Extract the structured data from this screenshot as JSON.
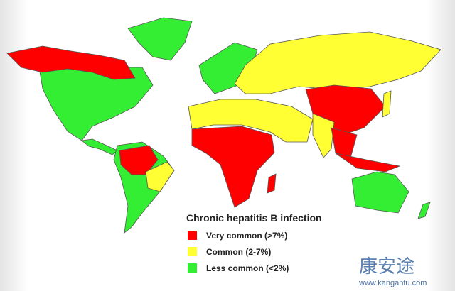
{
  "legend": {
    "title": "Chronic hepatitis B infection",
    "items": [
      {
        "label": "Very common (>7%)",
        "color": "#ff0000"
      },
      {
        "label": "Common (2-7%)",
        "color": "#ffff33"
      },
      {
        "label": "Less common (<2%)",
        "color": "#33ee33"
      }
    ]
  },
  "watermark": {
    "name": "康安途",
    "url": "www.kangantu.com"
  }
}
